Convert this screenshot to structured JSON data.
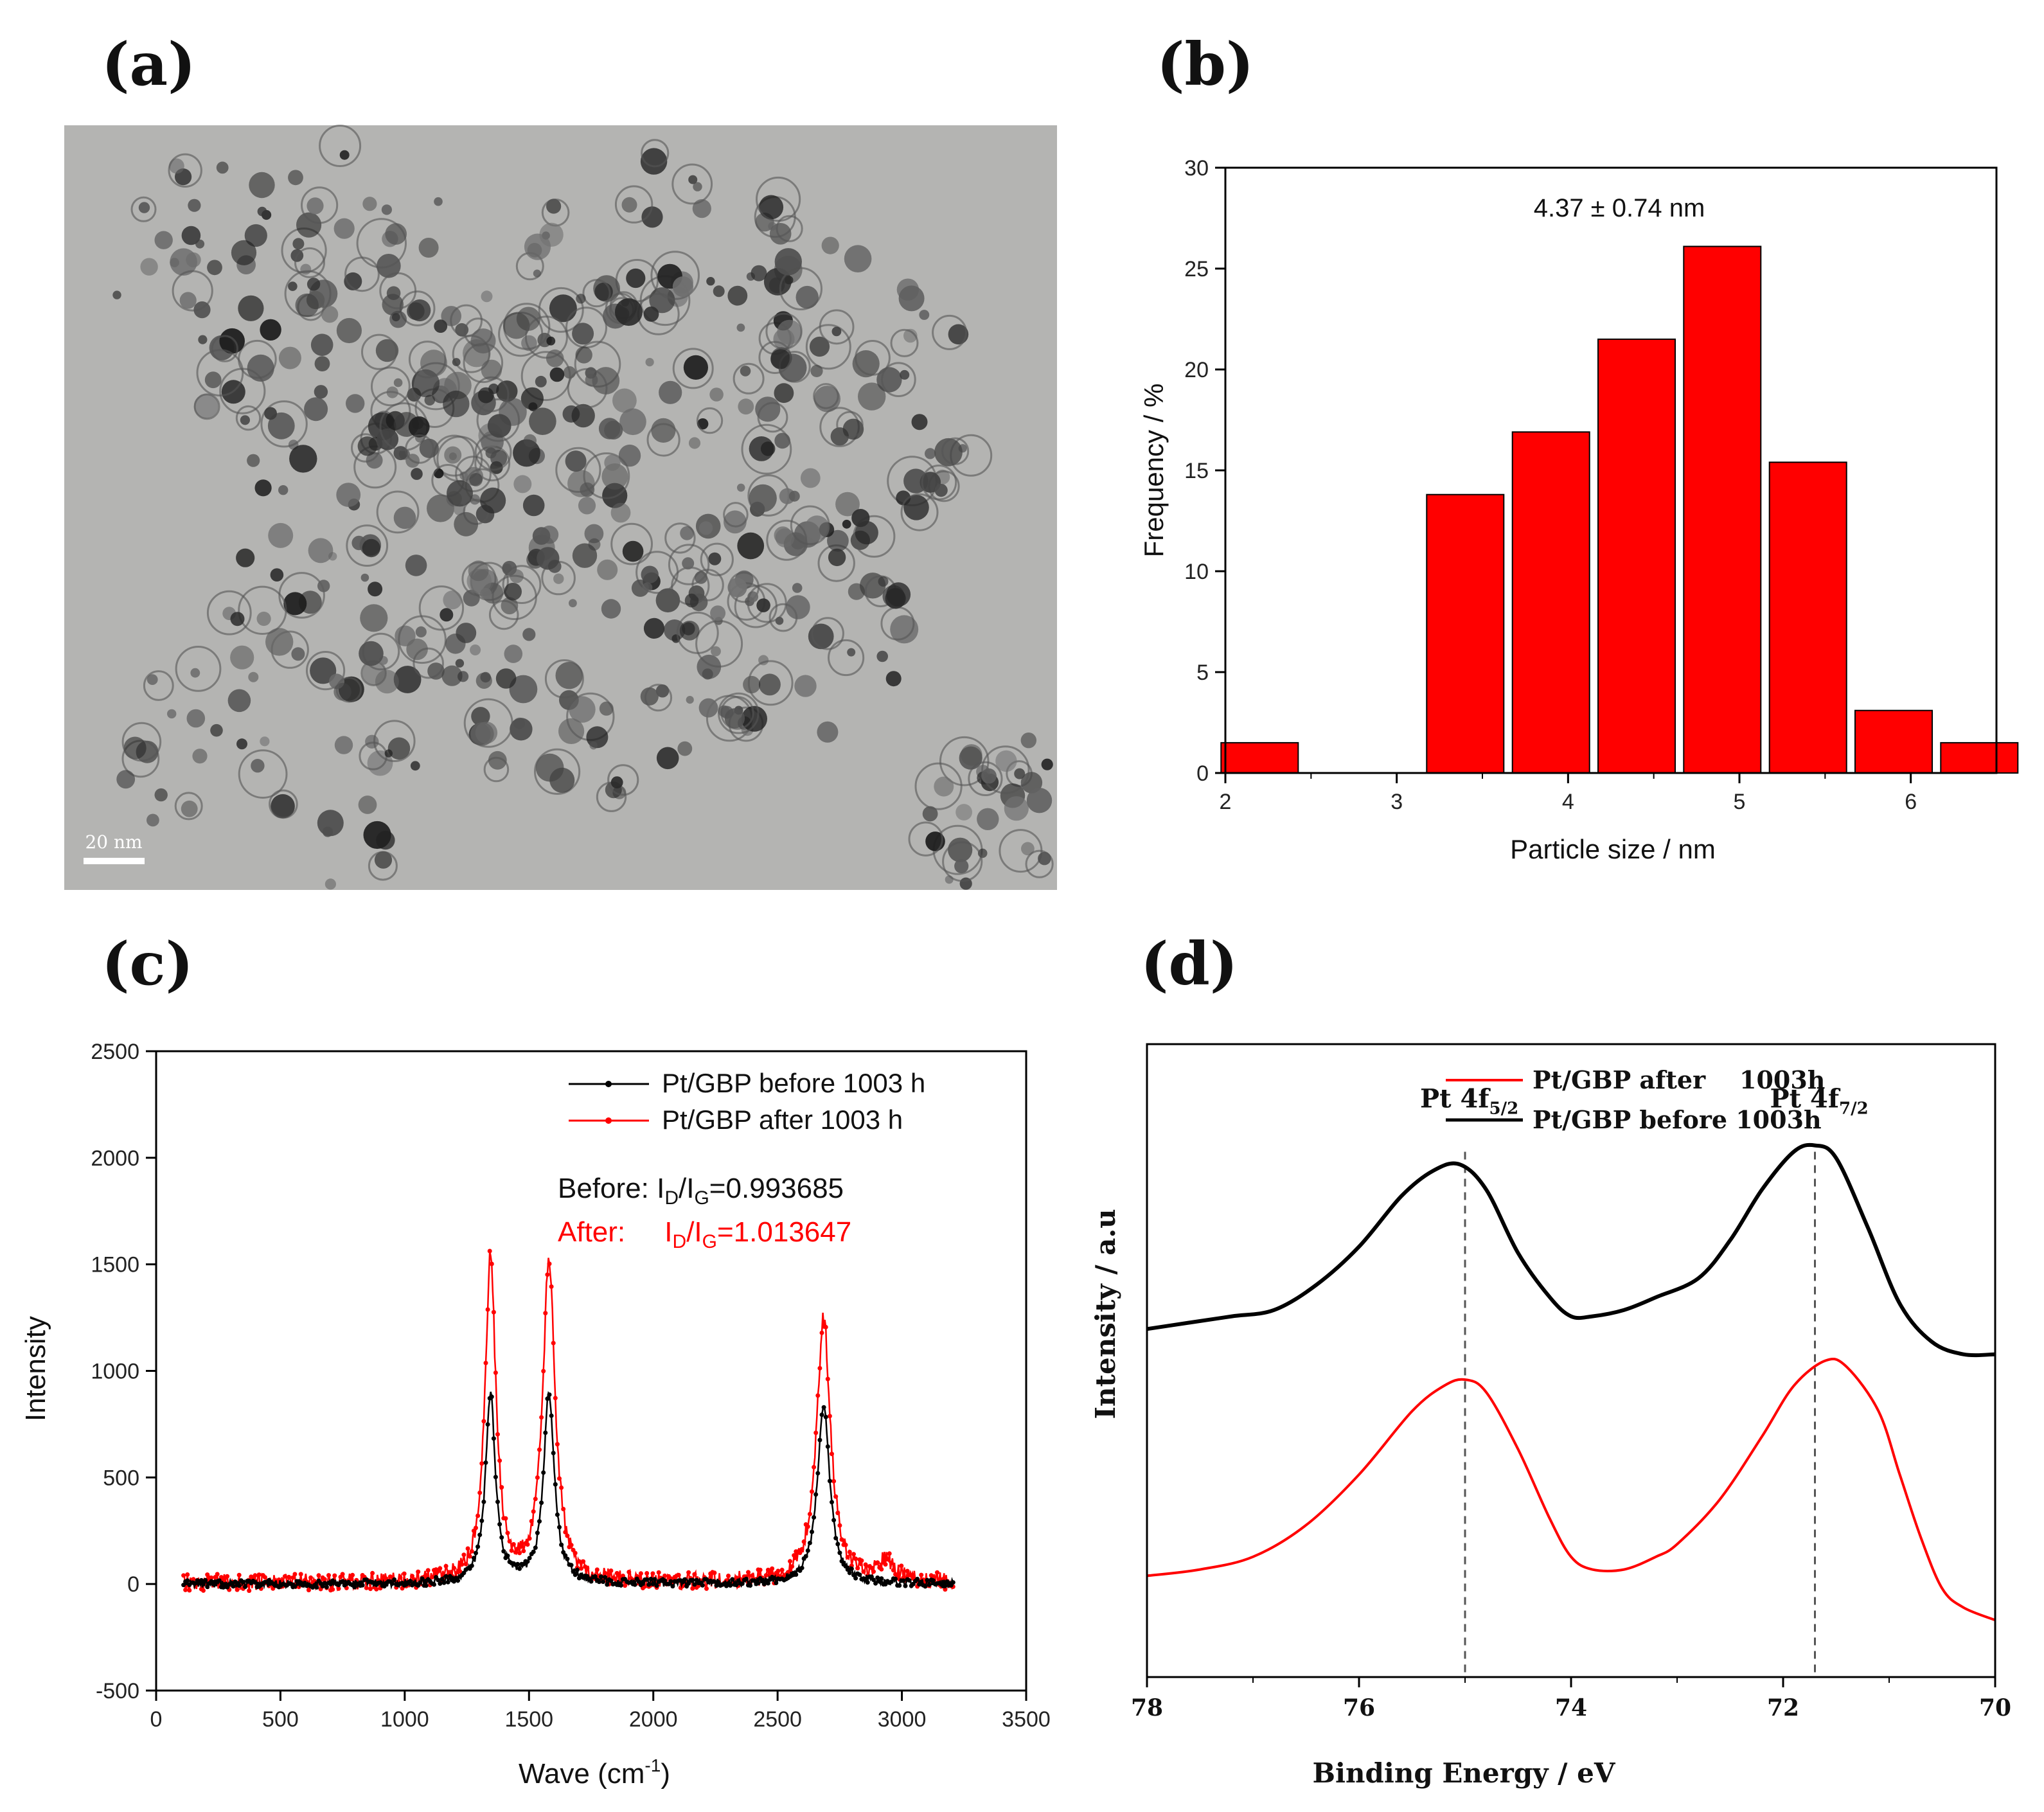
{
  "panel_labels": [
    "(a)",
    "(b)",
    "(c)",
    "(d)"
  ],
  "tem": {
    "scale_bar_label": "20 nm"
  },
  "chart_data": [
    {
      "panel": "b",
      "type": "bar",
      "bin_centers": [
        2.2,
        3.4,
        3.9,
        4.4,
        4.9,
        5.4,
        5.9,
        6.4
      ],
      "categories": [
        "2.2",
        "3.4",
        "3.9",
        "4.4",
        "4.9",
        "5.4",
        "5.9",
        "6.4"
      ],
      "values": [
        1.5,
        13.8,
        16.9,
        21.5,
        26.1,
        15.4,
        3.1,
        1.5
      ],
      "bin_width": 0.45,
      "color": "#ff0000",
      "annotation": "4.37 ± 0.74 nm",
      "xlabel": "Particle size / nm",
      "ylabel": "Frequency / %",
      "xlim": [
        2,
        6.5
      ],
      "ylim": [
        0,
        30
      ],
      "xticks": [
        2,
        3,
        4,
        5,
        6
      ],
      "yticks": [
        0,
        5,
        10,
        15,
        20,
        25,
        30
      ]
    },
    {
      "panel": "c",
      "type": "line",
      "xlabel": "Wave (cm",
      "xlabel_sup": "-1",
      "xlabel_end": ")",
      "ylabel": "Intensity",
      "xlim": [
        0,
        3500
      ],
      "ylim": [
        -500,
        2500
      ],
      "xticks": [
        0,
        500,
        1000,
        1500,
        2000,
        2500,
        3000,
        3500
      ],
      "yticks": [
        -500,
        0,
        500,
        1000,
        1500,
        2000,
        2500
      ],
      "series": [
        {
          "name": "Pt/GBP before 1003 h",
          "color": "#000000",
          "baseline": 0,
          "peaks": [
            [
              1345,
              890,
              24
            ],
            [
              1580,
              890,
              26
            ],
            [
              2685,
              840,
              30
            ]
          ],
          "noise": 18
        },
        {
          "name": "Pt/GBP after 1003 h",
          "color": "#ff0000",
          "baseline": 5,
          "peaks": [
            [
              1345,
              1520,
              26
            ],
            [
              1580,
              1500,
              30
            ],
            [
              2685,
              1240,
              34
            ],
            [
              2935,
              90,
              40
            ]
          ],
          "noise": 40
        }
      ],
      "annotations": [
        {
          "prefix": "Before: ",
          "ratio_main": "I",
          "sub1": "D",
          "slash": "/I",
          "sub2": "G",
          "value": "=0.993685",
          "color": "#000000"
        },
        {
          "prefix": "After:     ",
          "ratio_main": "I",
          "sub1": "D",
          "slash": "/I",
          "sub2": "G",
          "value": "=1.013647",
          "color": "#ff0000"
        }
      ]
    },
    {
      "panel": "d",
      "type": "line",
      "xlabel": "Binding Energy / eV",
      "ylabel": "Intensity / a.u",
      "xlim": [
        78,
        70
      ],
      "ylim": [
        0,
        1
      ],
      "xticks": [
        78,
        76,
        74,
        72,
        70
      ],
      "series": [
        {
          "name": "Pt/GBP after    1003h",
          "color": "#ff0000",
          "points": [
            [
              78,
              0.16
            ],
            [
              77.5,
              0.17
            ],
            [
              77,
              0.19
            ],
            [
              76.5,
              0.24
            ],
            [
              76,
              0.32
            ],
            [
              75.5,
              0.42
            ],
            [
              75.2,
              0.46
            ],
            [
              75.0,
              0.47
            ],
            [
              74.8,
              0.45
            ],
            [
              74.5,
              0.36
            ],
            [
              74.2,
              0.25
            ],
            [
              74.0,
              0.19
            ],
            [
              73.8,
              0.17
            ],
            [
              73.5,
              0.17
            ],
            [
              73.2,
              0.19
            ],
            [
              73.0,
              0.21
            ],
            [
              72.6,
              0.28
            ],
            [
              72.2,
              0.38
            ],
            [
              71.9,
              0.46
            ],
            [
              71.6,
              0.5
            ],
            [
              71.4,
              0.49
            ],
            [
              71.1,
              0.42
            ],
            [
              70.9,
              0.32
            ],
            [
              70.7,
              0.22
            ],
            [
              70.5,
              0.14
            ],
            [
              70.3,
              0.11
            ],
            [
              70.0,
              0.09
            ]
          ]
        },
        {
          "name": "Pt/GBP before 1003h",
          "color": "#000000",
          "points": [
            [
              78,
              0.55
            ],
            [
              77.6,
              0.56
            ],
            [
              77.2,
              0.57
            ],
            [
              76.8,
              0.58
            ],
            [
              76.4,
              0.62
            ],
            [
              76.0,
              0.68
            ],
            [
              75.6,
              0.76
            ],
            [
              75.3,
              0.8
            ],
            [
              75.05,
              0.81
            ],
            [
              74.8,
              0.77
            ],
            [
              74.5,
              0.67
            ],
            [
              74.2,
              0.6
            ],
            [
              74.0,
              0.57
            ],
            [
              73.8,
              0.57
            ],
            [
              73.5,
              0.58
            ],
            [
              73.2,
              0.6
            ],
            [
              72.8,
              0.63
            ],
            [
              72.5,
              0.69
            ],
            [
              72.2,
              0.77
            ],
            [
              71.9,
              0.83
            ],
            [
              71.7,
              0.84
            ],
            [
              71.5,
              0.82
            ],
            [
              71.2,
              0.71
            ],
            [
              70.9,
              0.59
            ],
            [
              70.6,
              0.53
            ],
            [
              70.3,
              0.51
            ],
            [
              70.0,
              0.51
            ]
          ]
        }
      ],
      "peak_labels": [
        {
          "name": "Pt 4f",
          "sub": "5/2",
          "x": 75.0
        },
        {
          "name": "Pt 4f",
          "sub": "7/2",
          "x": 71.7
        }
      ]
    }
  ]
}
